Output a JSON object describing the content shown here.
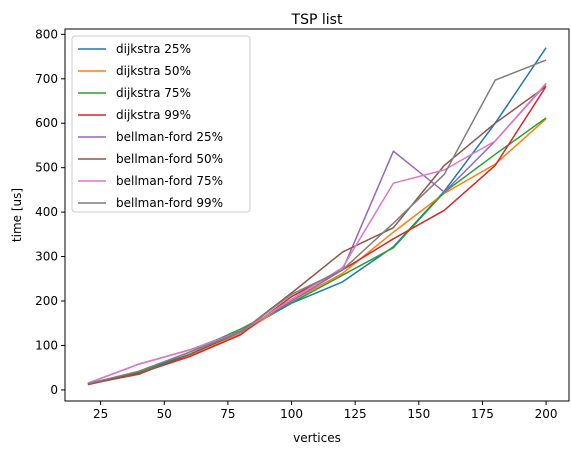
{
  "chart_data": {
    "type": "line",
    "title": "TSP list",
    "xlabel": "vertices",
    "ylabel": "time [us]",
    "xlim": [
      11,
      209
    ],
    "ylim": [
      -25,
      812
    ],
    "xticks": [
      25,
      50,
      75,
      100,
      125,
      150,
      175,
      200
    ],
    "yticks": [
      0,
      100,
      200,
      300,
      400,
      500,
      600,
      700,
      800
    ],
    "legend_position": "upper-left",
    "grid": false,
    "x": [
      20,
      40,
      60,
      80,
      100,
      120,
      140,
      160,
      180,
      200
    ],
    "series": [
      {
        "name": "dijkstra 25%",
        "color": "#1f77b4",
        "values": [
          13,
          40,
          80,
          130,
          195,
          243,
          322,
          447,
          600,
          770
        ]
      },
      {
        "name": "dijkstra 50%",
        "color": "#ff7f0e",
        "values": [
          13,
          37,
          76,
          126,
          200,
          262,
          355,
          442,
          508,
          610
        ]
      },
      {
        "name": "dijkstra 75%",
        "color": "#2ca02c",
        "values": [
          14,
          40,
          85,
          137,
          196,
          258,
          320,
          445,
          530,
          612
        ]
      },
      {
        "name": "dijkstra 99%",
        "color": "#d62728",
        "values": [
          12,
          37,
          75,
          124,
          210,
          270,
          340,
          404,
          505,
          683
        ]
      },
      {
        "name": "bellman-ford 25%",
        "color": "#9467bd",
        "values": [
          15,
          58,
          90,
          133,
          200,
          270,
          537,
          445,
          560,
          688
        ]
      },
      {
        "name": "bellman-ford 50%",
        "color": "#8c564b",
        "values": [
          13,
          35,
          80,
          130,
          218,
          310,
          365,
          505,
          600,
          683
        ]
      },
      {
        "name": "bellman-ford 75%",
        "color": "#e377c2",
        "values": [
          15,
          58,
          90,
          130,
          204,
          275,
          465,
          495,
          560,
          690
        ]
      },
      {
        "name": "bellman-ford 99%",
        "color": "#7f7f7f",
        "values": [
          14,
          42,
          85,
          130,
          215,
          270,
          375,
          485,
          697,
          742
        ]
      }
    ]
  }
}
